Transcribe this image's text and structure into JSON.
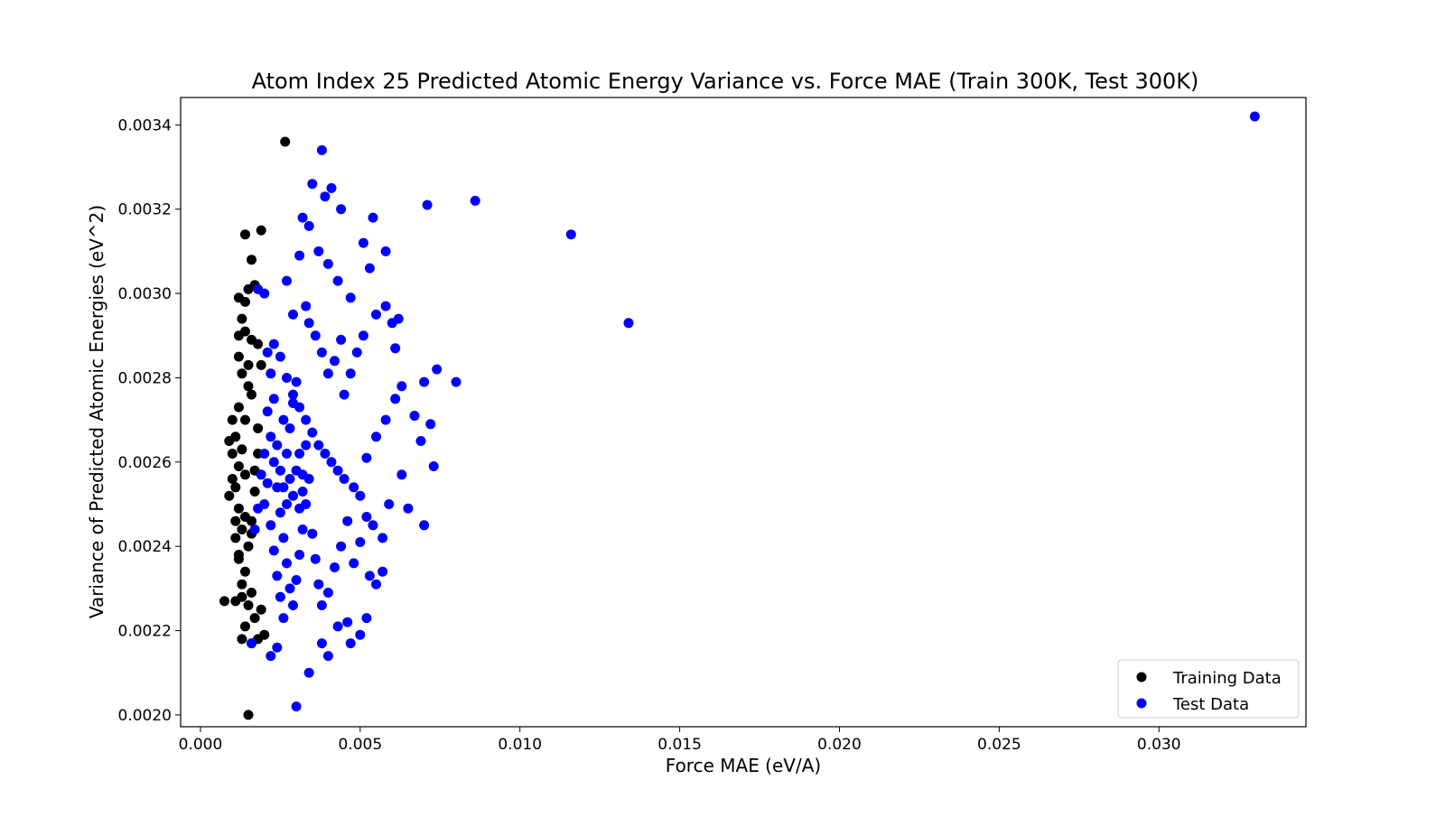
{
  "chart_data": {
    "type": "scatter",
    "title": "Atom Index 25 Predicted Atomic Energy Variance vs. Force MAE (Train 300K, Test 300K)",
    "xlabel": "Force MAE (eV/A)",
    "ylabel": "Variance of Predicted Atomic Energies (eV^2)",
    "xlim": [
      -0.00062,
      0.0346
    ],
    "ylim": [
      0.001972,
      0.003465
    ],
    "x_ticks": [
      "0.000",
      "0.005",
      "0.010",
      "0.015",
      "0.020",
      "0.025",
      "0.030"
    ],
    "y_ticks": [
      "0.0020",
      "0.0022",
      "0.0024",
      "0.0026",
      "0.0028",
      "0.0030",
      "0.0032",
      "0.0034"
    ],
    "grid": false,
    "legend_position": "bottom-right",
    "series": [
      {
        "name": "Training Data",
        "color": "#000000",
        "points": [
          [
            0.00075,
            0.00227
          ],
          [
            0.0011,
            0.00227
          ],
          [
            0.0013,
            0.00228
          ],
          [
            0.0015,
            0.002
          ],
          [
            0.0016,
            0.00217
          ],
          [
            0.0014,
            0.00314
          ],
          [
            0.0019,
            0.00315
          ],
          [
            0.0016,
            0.00308
          ],
          [
            0.00265,
            0.00336
          ],
          [
            0.0015,
            0.00301
          ],
          [
            0.0014,
            0.00298
          ],
          [
            0.0013,
            0.00294
          ],
          [
            0.0012,
            0.0029
          ],
          [
            0.0016,
            0.00289
          ],
          [
            0.0018,
            0.00288
          ],
          [
            0.0017,
            0.00302
          ],
          [
            0.0012,
            0.00285
          ],
          [
            0.0013,
            0.00281
          ],
          [
            0.0015,
            0.00278
          ],
          [
            0.0012,
            0.00273
          ],
          [
            0.0014,
            0.0027
          ],
          [
            0.0011,
            0.00266
          ],
          [
            0.0009,
            0.00265
          ],
          [
            0.001,
            0.00262
          ],
          [
            0.0012,
            0.00259
          ],
          [
            0.0014,
            0.00257
          ],
          [
            0.0011,
            0.00254
          ],
          [
            0.0009,
            0.00252
          ],
          [
            0.0012,
            0.00249
          ],
          [
            0.0014,
            0.00247
          ],
          [
            0.0013,
            0.00244
          ],
          [
            0.0011,
            0.00242
          ],
          [
            0.0015,
            0.0024
          ],
          [
            0.0012,
            0.00237
          ],
          [
            0.0014,
            0.00234
          ],
          [
            0.0013,
            0.00231
          ],
          [
            0.0016,
            0.00229
          ],
          [
            0.0015,
            0.00226
          ],
          [
            0.0017,
            0.00223
          ],
          [
            0.0014,
            0.00221
          ],
          [
            0.0013,
            0.00218
          ],
          [
            0.0018,
            0.00218
          ],
          [
            0.002,
            0.00219
          ],
          [
            0.0019,
            0.00225
          ],
          [
            0.0016,
            0.00243
          ],
          [
            0.0017,
            0.00253
          ],
          [
            0.0018,
            0.00268
          ],
          [
            0.0016,
            0.00276
          ],
          [
            0.0019,
            0.00283
          ],
          [
            0.001,
            0.0027
          ],
          [
            0.001,
            0.00256
          ],
          [
            0.0011,
            0.00246
          ],
          [
            0.0012,
            0.00238
          ],
          [
            0.0013,
            0.00263
          ],
          [
            0.0015,
            0.00283
          ],
          [
            0.0014,
            0.00291
          ],
          [
            0.0012,
            0.00299
          ],
          [
            0.0016,
            0.00246
          ],
          [
            0.0017,
            0.00258
          ],
          [
            0.0018,
            0.00262
          ]
        ]
      },
      {
        "name": "Test Data",
        "color": "#0000ff",
        "points": [
          [
            0.033,
            0.00342
          ],
          [
            0.0134,
            0.00293
          ],
          [
            0.0116,
            0.00314
          ],
          [
            0.0086,
            0.00322
          ],
          [
            0.0071,
            0.00321
          ],
          [
            0.008,
            0.00279
          ],
          [
            0.0074,
            0.00282
          ],
          [
            0.0073,
            0.00259
          ],
          [
            0.007,
            0.00245
          ],
          [
            0.0069,
            0.00265
          ],
          [
            0.0072,
            0.00269
          ],
          [
            0.007,
            0.00279
          ],
          [
            0.0067,
            0.00271
          ],
          [
            0.0065,
            0.00249
          ],
          [
            0.0063,
            0.00257
          ],
          [
            0.0061,
            0.00287
          ],
          [
            0.006,
            0.00293
          ],
          [
            0.0058,
            0.00297
          ],
          [
            0.0057,
            0.00242
          ],
          [
            0.0059,
            0.0025
          ],
          [
            0.0055,
            0.00231
          ],
          [
            0.0057,
            0.00234
          ],
          [
            0.0054,
            0.00245
          ],
          [
            0.0052,
            0.00223
          ],
          [
            0.005,
            0.00219
          ],
          [
            0.0047,
            0.00217
          ],
          [
            0.0046,
            0.00222
          ],
          [
            0.0043,
            0.00221
          ],
          [
            0.004,
            0.00214
          ],
          [
            0.0038,
            0.00217
          ],
          [
            0.0034,
            0.0021
          ],
          [
            0.003,
            0.00202
          ],
          [
            0.0022,
            0.00214
          ],
          [
            0.0024,
            0.00216
          ],
          [
            0.0016,
            0.00217
          ],
          [
            0.0038,
            0.00334
          ],
          [
            0.0035,
            0.00326
          ],
          [
            0.0041,
            0.00325
          ],
          [
            0.0039,
            0.00323
          ],
          [
            0.0044,
            0.0032
          ],
          [
            0.0054,
            0.00318
          ],
          [
            0.0032,
            0.00318
          ],
          [
            0.0034,
            0.00316
          ],
          [
            0.0051,
            0.00312
          ],
          [
            0.0058,
            0.0031
          ],
          [
            0.0037,
            0.0031
          ],
          [
            0.0031,
            0.00309
          ],
          [
            0.0053,
            0.00306
          ],
          [
            0.0043,
            0.00303
          ],
          [
            0.004,
            0.00307
          ],
          [
            0.0027,
            0.00303
          ],
          [
            0.002,
            0.003
          ],
          [
            0.0018,
            0.00301
          ],
          [
            0.0029,
            0.00295
          ],
          [
            0.0033,
            0.00297
          ],
          [
            0.0047,
            0.00299
          ],
          [
            0.0055,
            0.00295
          ],
          [
            0.0062,
            0.00294
          ],
          [
            0.0023,
            0.00288
          ],
          [
            0.0025,
            0.00285
          ],
          [
            0.0027,
            0.0028
          ],
          [
            0.0029,
            0.00276
          ],
          [
            0.0031,
            0.00273
          ],
          [
            0.0033,
            0.0027
          ],
          [
            0.0035,
            0.00267
          ],
          [
            0.0037,
            0.00264
          ],
          [
            0.0039,
            0.00262
          ],
          [
            0.0041,
            0.0026
          ],
          [
            0.0043,
            0.00258
          ],
          [
            0.0045,
            0.00256
          ],
          [
            0.0048,
            0.00254
          ],
          [
            0.005,
            0.00252
          ],
          [
            0.0052,
            0.00261
          ],
          [
            0.0055,
            0.00266
          ],
          [
            0.0058,
            0.0027
          ],
          [
            0.0061,
            0.00275
          ],
          [
            0.0063,
            0.00278
          ],
          [
            0.0045,
            0.00276
          ],
          [
            0.0047,
            0.00281
          ],
          [
            0.0049,
            0.00286
          ],
          [
            0.0051,
            0.0029
          ],
          [
            0.0044,
            0.00289
          ],
          [
            0.0042,
            0.00284
          ],
          [
            0.004,
            0.00281
          ],
          [
            0.0038,
            0.00286
          ],
          [
            0.0036,
            0.0029
          ],
          [
            0.0034,
            0.00293
          ],
          [
            0.0021,
            0.00272
          ],
          [
            0.0022,
            0.00266
          ],
          [
            0.0023,
            0.0026
          ],
          [
            0.0024,
            0.00254
          ],
          [
            0.0025,
            0.00248
          ],
          [
            0.0026,
            0.00242
          ],
          [
            0.0027,
            0.00236
          ],
          [
            0.0028,
            0.0023
          ],
          [
            0.0029,
            0.00226
          ],
          [
            0.003,
            0.00232
          ],
          [
            0.0031,
            0.00238
          ],
          [
            0.0032,
            0.00244
          ],
          [
            0.0033,
            0.0025
          ],
          [
            0.0034,
            0.00256
          ],
          [
            0.0035,
            0.00243
          ],
          [
            0.0036,
            0.00237
          ],
          [
            0.0037,
            0.00231
          ],
          [
            0.0038,
            0.00226
          ],
          [
            0.004,
            0.00229
          ],
          [
            0.0042,
            0.00235
          ],
          [
            0.0044,
            0.0024
          ],
          [
            0.0046,
            0.00246
          ],
          [
            0.0048,
            0.00236
          ],
          [
            0.005,
            0.00241
          ],
          [
            0.0052,
            0.00247
          ],
          [
            0.0053,
            0.00233
          ],
          [
            0.002,
            0.0025
          ],
          [
            0.0021,
            0.00255
          ],
          [
            0.0022,
            0.00245
          ],
          [
            0.0023,
            0.00239
          ],
          [
            0.0024,
            0.00233
          ],
          [
            0.0025,
            0.00228
          ],
          [
            0.0026,
            0.00223
          ],
          [
            0.0027,
            0.00262
          ],
          [
            0.0028,
            0.00268
          ],
          [
            0.0029,
            0.00274
          ],
          [
            0.003,
            0.00279
          ],
          [
            0.0026,
            0.0027
          ],
          [
            0.0025,
            0.00258
          ],
          [
            0.0024,
            0.00264
          ],
          [
            0.0023,
            0.00275
          ],
          [
            0.0022,
            0.00281
          ],
          [
            0.0021,
            0.00286
          ],
          [
            0.002,
            0.00262
          ],
          [
            0.0019,
            0.00257
          ],
          [
            0.0018,
            0.00249
          ],
          [
            0.0017,
            0.00244
          ],
          [
            0.0031,
            0.00262
          ],
          [
            0.0032,
            0.00257
          ],
          [
            0.0033,
            0.00264
          ],
          [
            0.0029,
            0.00252
          ],
          [
            0.0028,
            0.00256
          ],
          [
            0.0027,
            0.0025
          ],
          [
            0.0026,
            0.00254
          ],
          [
            0.003,
            0.00258
          ],
          [
            0.0031,
            0.00249
          ],
          [
            0.0032,
            0.00253
          ]
        ]
      }
    ],
    "legend": [
      "Training Data",
      "Test Data"
    ]
  }
}
